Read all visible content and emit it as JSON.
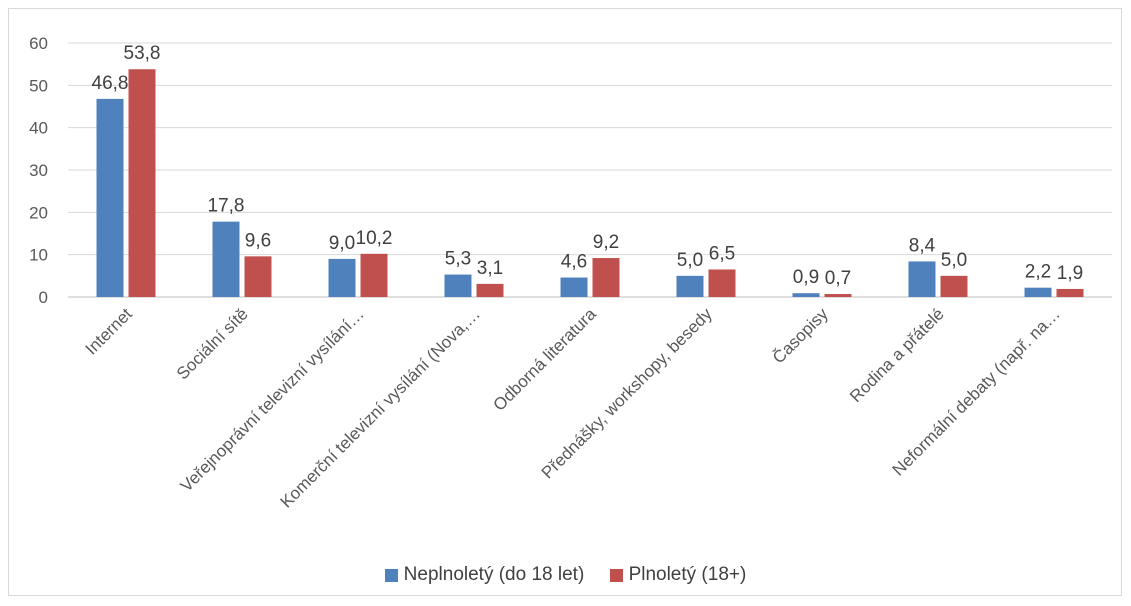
{
  "chart_data": {
    "type": "bar",
    "categories": [
      "Internet",
      "Sociální sítě",
      "Veřejnoprávní televizní vysílání…",
      "Komerční televizní vysílání (Nova,…",
      "Odborná literatura",
      "Přednášky, workshopy, besedy",
      "Časopisy",
      "Rodina a přátelé",
      "Neformální debaty (např. na…"
    ],
    "series": [
      {
        "name": "Neplnoletý (do 18 let)",
        "color": "#4f81bd",
        "values": [
          46.8,
          17.8,
          9.0,
          5.3,
          4.6,
          5.0,
          0.9,
          8.4,
          2.2
        ],
        "labels": [
          "46,8",
          "17,8",
          "9,0",
          "5,3",
          "4,6",
          "5,0",
          "0,9",
          "8,4",
          "2,2"
        ]
      },
      {
        "name": "Plnoletý (18+)",
        "color": "#c0504d",
        "values": [
          53.8,
          9.6,
          10.2,
          3.1,
          9.2,
          6.5,
          0.7,
          5.0,
          1.9
        ],
        "labels": [
          "53,8",
          "9,6",
          "10,2",
          "3,1",
          "9,2",
          "6,5",
          "0,7",
          "5,0",
          "1,9"
        ]
      }
    ],
    "title": "",
    "xlabel": "",
    "ylabel": "",
    "ylim": [
      0,
      60
    ],
    "yticks": [
      "0",
      "10",
      "20",
      "30",
      "40",
      "50",
      "60"
    ],
    "grid": true,
    "legend_position": "bottom"
  }
}
